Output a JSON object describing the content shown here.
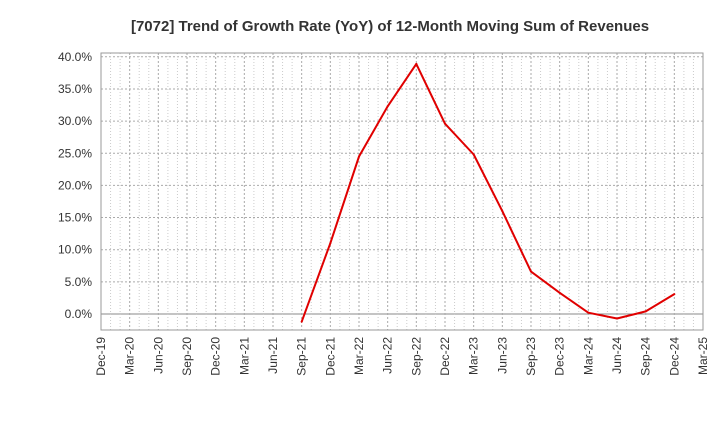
{
  "chart_data": {
    "type": "line",
    "title": "[7072]  Trend of Growth Rate (YoY) of 12-Month Moving Sum of Revenues",
    "xlabel": "",
    "ylabel": "",
    "x_ticks": [
      "Dec-19",
      "Mar-20",
      "Jun-20",
      "Sep-20",
      "Dec-20",
      "Mar-21",
      "Jun-21",
      "Sep-21",
      "Dec-21",
      "Mar-22",
      "Jun-22",
      "Sep-22",
      "Dec-22",
      "Mar-23",
      "Jun-23",
      "Sep-23",
      "Dec-23",
      "Mar-24",
      "Jun-24",
      "Sep-24",
      "Dec-24",
      "Mar-25"
    ],
    "y_ticks": [
      "40.0%",
      "35.0%",
      "30.0%",
      "25.0%",
      "20.0%",
      "15.0%",
      "10.0%",
      "5.0%",
      "0.0%"
    ],
    "ylim": [
      -2.5,
      40.0
    ],
    "grid": true,
    "series": [
      {
        "color": "#e00000",
        "x": [
          "Sep-21",
          "Dec-21",
          "Mar-22",
          "Jun-22",
          "Sep-22",
          "Dec-22",
          "Mar-23",
          "Jun-23",
          "Sep-23",
          "Dec-23",
          "Mar-24",
          "Jun-24",
          "Sep-24",
          "Dec-24"
        ],
        "values": [
          -1.2,
          11.0,
          24.5,
          32.3,
          38.9,
          29.6,
          24.8,
          16.0,
          6.6,
          3.3,
          0.2,
          -0.7,
          0.4,
          3.1
        ]
      }
    ]
  }
}
